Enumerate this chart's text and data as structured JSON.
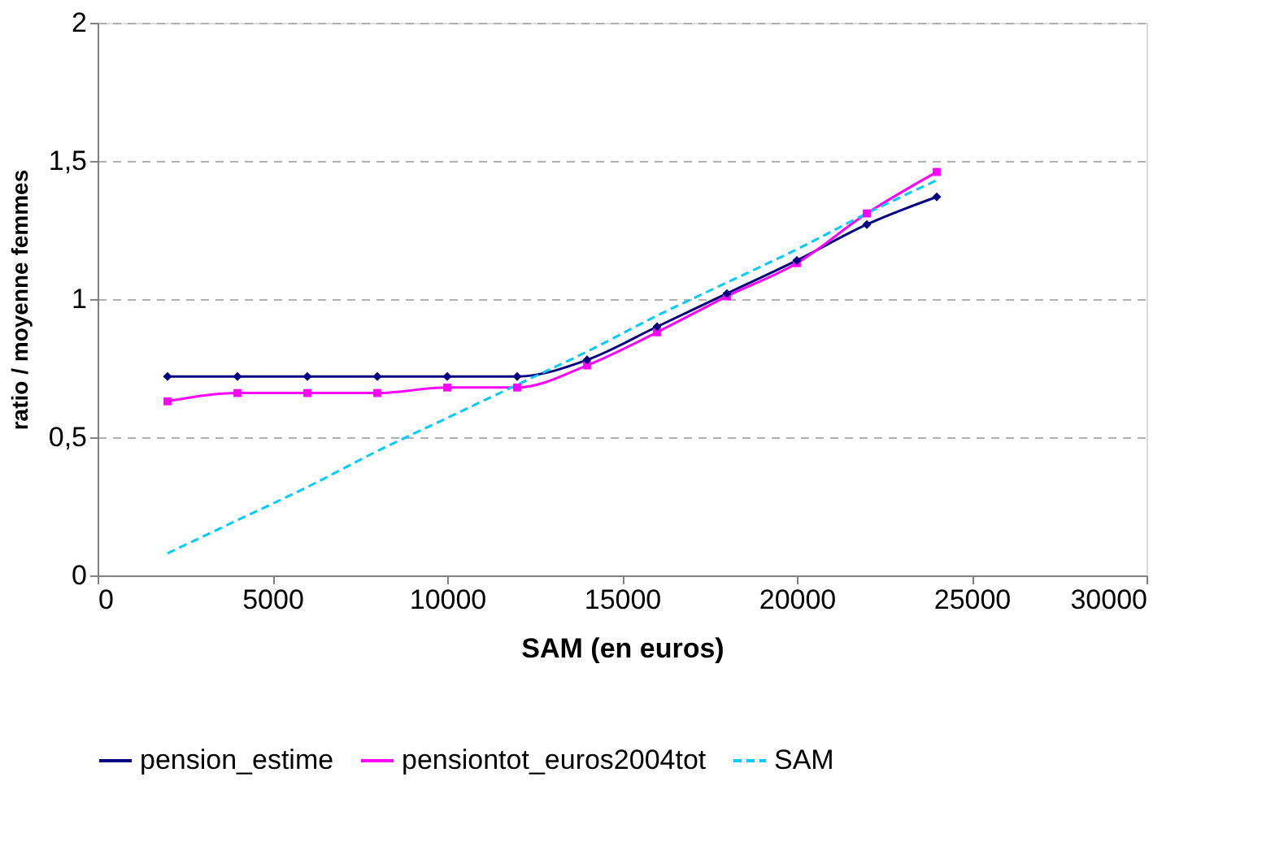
{
  "chart_data": {
    "type": "line",
    "xlabel": "SAM (en euros)",
    "ylabel": "ratio / moyenne femmes",
    "x": [
      2000,
      4000,
      6000,
      8000,
      10000,
      12000,
      14000,
      16000,
      18000,
      20000,
      22000,
      24000
    ],
    "series": [
      {
        "name": "pension_estime",
        "color": "#000080",
        "marker": "diamond",
        "line_style": "solid",
        "values": [
          0.72,
          0.72,
          0.72,
          0.72,
          0.72,
          0.72,
          0.78,
          0.9,
          1.02,
          1.14,
          1.27,
          1.37
        ]
      },
      {
        "name": "pensiontot_euros2004tot",
        "color": "#ff00ff",
        "marker": "square",
        "line_style": "solid",
        "values": [
          0.63,
          0.66,
          0.66,
          0.66,
          0.68,
          0.68,
          0.76,
          0.88,
          1.01,
          1.13,
          1.31,
          1.46
        ]
      },
      {
        "name": "SAM",
        "color": "#00ccff",
        "marker": "none",
        "line_style": "dashed",
        "values": [
          0.08,
          0.2,
          0.32,
          0.45,
          0.57,
          0.69,
          0.81,
          0.94,
          1.06,
          1.18,
          1.31,
          1.43
        ]
      }
    ],
    "xlim": [
      0,
      30000
    ],
    "xticks": [
      0,
      5000,
      10000,
      15000,
      20000,
      25000,
      30000
    ],
    "ylim": [
      0,
      2
    ],
    "yticks": [
      0,
      {
        "value": 0.5,
        "label": "0,5"
      },
      1,
      {
        "value": 1.5,
        "label": "1,5"
      },
      2
    ],
    "grid": "y",
    "legend": "bottom"
  }
}
